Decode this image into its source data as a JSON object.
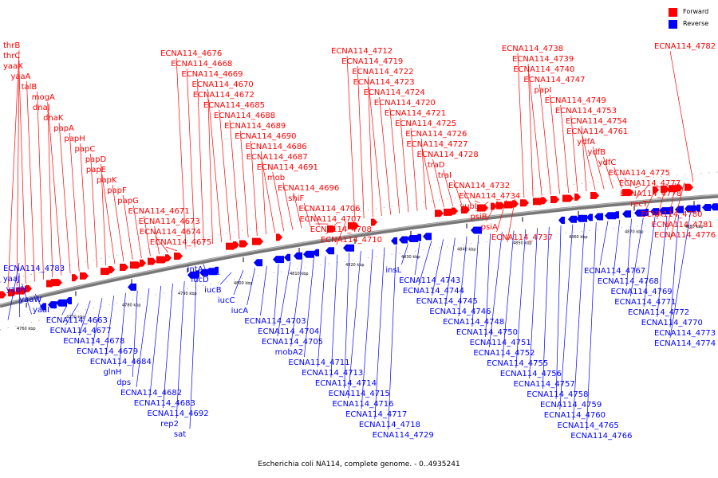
{
  "title": "Escherichia coli NA114, complete genome. - 0..4935241",
  "legend": [
    {
      "label": "Forward",
      "color": "#ff0000"
    },
    {
      "label": "Reverse",
      "color": "#0000ff"
    }
  ],
  "axis": {
    "ticks": [
      "4760 kbp",
      "4770 kbp",
      "4780 kbp",
      "4790 kbp",
      "4800 kbp",
      "4810 kbp",
      "4820 kbp",
      "4830 kbp",
      "4840 kbp",
      "4850 kbp",
      "4860 kbp",
      "4870 kbp",
      "4880 kbp"
    ]
  },
  "forward_genes": [
    "thrB",
    "thrC",
    "yaaX",
    "yaaA",
    "talB",
    "mogA",
    "dnaJ",
    "dnaK",
    "papA",
    "papH",
    "papC",
    "papD",
    "papE",
    "papK",
    "papF",
    "papG",
    "ECNA114_4671",
    "ECNA114_4673",
    "ECNA114_4674",
    "ECNA114_4675",
    "ECNA114_4676",
    "ECNA114_4668",
    "ECNA114_4669",
    "ECNA114_4670",
    "ECNA114_4672",
    "ECNA114_4685",
    "ECNA114_4688",
    "ECNA114_4689",
    "ECNA114_4690",
    "ECNA114_4686",
    "ECNA114_4687",
    "ECNA114_4691",
    "mob",
    "ECNA114_4696",
    "shiF",
    "ECNA114_4706",
    "ECNA114_4707",
    "ECNA114_4708",
    "ECNA114_4710",
    "ECNA114_4712",
    "ECNA114_4719",
    "ECNA114_4722",
    "ECNA114_4723",
    "ECNA114_4724",
    "ECNA114_4720",
    "ECNA114_4721",
    "ECNA114_4725",
    "ECNA114_4726",
    "ECNA114_4727",
    "ECNA114_4728",
    "traD",
    "traI",
    "ECNA114_4732",
    "ECNA114_4734",
    "yubL",
    "psiB",
    "psiA",
    "ECNA114_4737",
    "ECNA114_4738",
    "ECNA114_4739",
    "ECNA114_4740",
    "ECNA114_4747",
    "papI",
    "ECNA114_4749",
    "ECNA114_4753",
    "ECNA114_4754",
    "ECNA114_4761",
    "ydfA",
    "ydfB",
    "ydfC",
    "ECNA114_4775",
    "ECNA114_4777",
    "ECNA114_4778",
    "recT",
    "ECNA114_4780",
    "ECNA114_4781",
    "ECNA114_4776",
    "ECNA114_4782"
  ],
  "reverse_genes": [
    "ECNA114_4783",
    "yaaJ",
    "yaaH",
    "yaaW",
    "yaaI",
    "ECNA114_4663",
    "ECNA114_4677",
    "ECNA114_4678",
    "ECNA114_4679",
    "ECNA114_4684",
    "glnH",
    "dps",
    "ECNA114_4682",
    "ECNA114_4683",
    "ECNA114_4692",
    "rep2",
    "sat",
    "intA",
    "iucD",
    "iucB",
    "iucC",
    "iucA",
    "ECNA114_4703",
    "ECNA114_4704",
    "ECNA114_4705",
    "mobA2",
    "ECNA114_4711",
    "ECNA114_4713",
    "ECNA114_4714",
    "ECNA114_4715",
    "ECNA114_4716",
    "ECNA114_4717",
    "ECNA114_4718",
    "ECNA114_4729",
    "insL",
    "ECNA114_4743",
    "ECNA114_4744",
    "ECNA114_4745",
    "ECNA114_4746",
    "ECNA114_4748",
    "ECNA114_4750",
    "ECNA114_4751",
    "ECNA114_4752",
    "ECNA114_4755",
    "ECNA114_4756",
    "ECNA114_4757",
    "ECNA114_4758",
    "ECNA114_4759",
    "ECNA114_4760",
    "ECNA114_4765",
    "ECNA114_4766",
    "ECNA114_4767",
    "ECNA114_4768",
    "ECNA114_4769",
    "ECNA114_4771",
    "ECNA114_4772",
    "ECNA114_4770",
    "ECNA114_4773",
    "ECNA114_4774"
  ]
}
